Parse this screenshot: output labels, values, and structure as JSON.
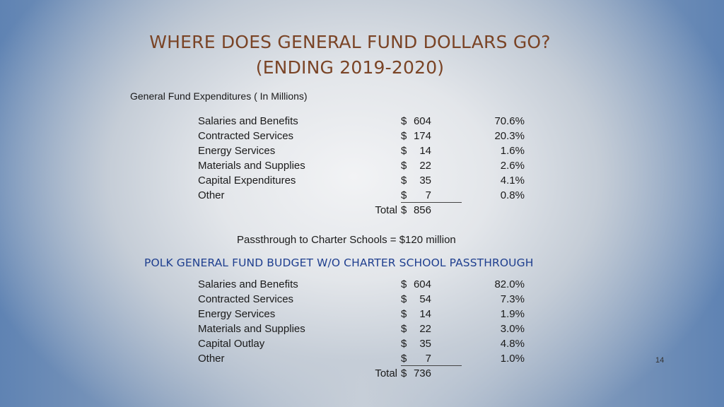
{
  "slide": {
    "title_line1": "WHERE DOES GENERAL FUND DOLLARS GO?",
    "title_line2": "(ENDING 2019-2020)",
    "subtitle": "General Fund Expenditures ( In Millions)",
    "currency_symbol": "$",
    "total_label": "Total",
    "page_number": "14"
  },
  "table1": {
    "rows": [
      {
        "label": "Salaries and Benefits",
        "amount": "604",
        "pct": "70.6%"
      },
      {
        "label": "Contracted Services",
        "amount": "174",
        "pct": "20.3%"
      },
      {
        "label": "Energy Services",
        "amount": "14",
        "pct": "1.6%"
      },
      {
        "label": "Materials and Supplies",
        "amount": "22",
        "pct": "2.6%"
      },
      {
        "label": "Capital Expenditures",
        "amount": "35",
        "pct": "4.1%"
      },
      {
        "label": "Other",
        "amount": "7",
        "pct": "0.8%"
      }
    ],
    "total": "856"
  },
  "passthrough_text": "Passthrough to Charter Schools = $120 million",
  "section2_heading": "POLK GENERAL FUND BUDGET W/O CHARTER SCHOOL PASSTHROUGH",
  "table2": {
    "rows": [
      {
        "label": "Salaries and Benefits",
        "amount": "604",
        "pct": "82.0%"
      },
      {
        "label": "Contracted Services",
        "amount": "54",
        "pct": "7.3%"
      },
      {
        "label": "Energy Services",
        "amount": "14",
        "pct": "1.9%"
      },
      {
        "label": "Materials and Supplies",
        "amount": "22",
        "pct": "3.0%"
      },
      {
        "label": "Capital Outlay",
        "amount": "35",
        "pct": "4.8%"
      },
      {
        "label": "Other",
        "amount": "7",
        "pct": "1.0%"
      }
    ],
    "total": "736"
  },
  "colors": {
    "title": "#7a4426",
    "heading2": "#1f3f8f",
    "background_edge": "#5f83b3"
  }
}
